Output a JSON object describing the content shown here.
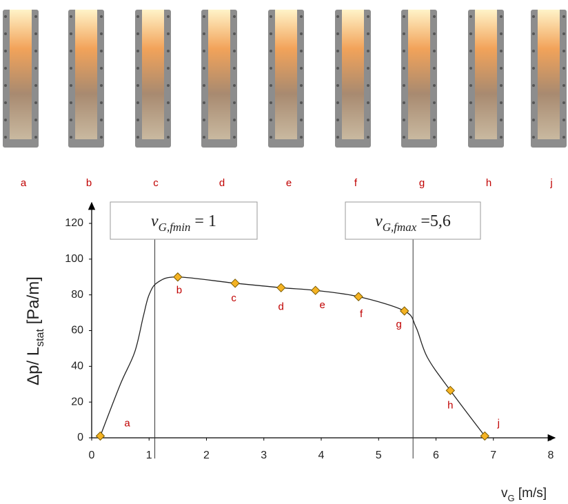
{
  "photo_labels": [
    "a",
    "b",
    "c",
    "d",
    "e",
    "f",
    "g",
    "h",
    "j"
  ],
  "chart_data": {
    "type": "line",
    "xlabel": {
      "text": "v",
      "sub": "G",
      "rest": " [m/s]"
    },
    "ylabel": {
      "text": "Δp/ L",
      "sub": "stat",
      "rest": " [Pa/m]"
    },
    "xlim": [
      0,
      8
    ],
    "xticks": [
      0,
      1,
      2,
      3,
      4,
      5,
      6,
      7,
      8
    ],
    "ylim": [
      0,
      120
    ],
    "yticks": [
      0,
      20,
      40,
      60,
      80,
      100,
      120
    ],
    "curve": {
      "color": "#222222",
      "x": [
        0.15,
        0.5,
        0.75,
        0.9,
        1.0,
        1.15,
        1.5,
        2.5,
        3.3,
        3.9,
        4.65,
        5.45,
        5.65,
        5.85,
        6.25,
        6.85
      ],
      "y": [
        1,
        30,
        48,
        68,
        80,
        87,
        90,
        86.5,
        84,
        82.5,
        79,
        71,
        62,
        45,
        26.5,
        1
      ]
    },
    "points": {
      "color": "#f5b323",
      "x": [
        0.15,
        1.5,
        2.5,
        3.3,
        3.9,
        4.65,
        5.45,
        6.25,
        6.85
      ],
      "y": [
        1,
        90,
        86.5,
        84,
        82.5,
        79,
        71,
        26.5,
        1
      ],
      "labels": [
        "a",
        "b",
        "c",
        "d",
        "e",
        "f",
        "g",
        "h",
        "j"
      ]
    },
    "vlines": [
      1.1,
      5.6
    ],
    "annotations": [
      {
        "symbol": "v",
        "sub": "G,fmin",
        "text": " = 1"
      },
      {
        "symbol": "v",
        "sub": "G,fmax",
        "text": " =5,6"
      }
    ]
  }
}
